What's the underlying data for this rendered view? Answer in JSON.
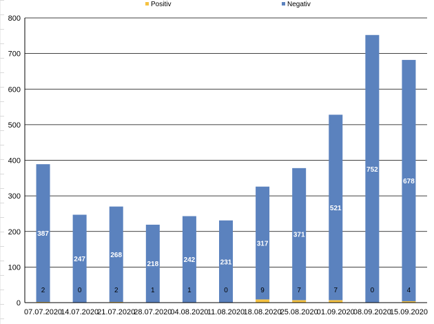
{
  "chart_data": {
    "type": "bar",
    "stacked": true,
    "categories": [
      "07.07.2020",
      "14.07.2020",
      "21.07.2020",
      "28.07.2020",
      "04.08.2020",
      "11.08.2020",
      "18.08.2020",
      "25.08.2020",
      "01.09.2020",
      "08.09.2020",
      "15.09.2020"
    ],
    "series": [
      {
        "name": "Positiv",
        "color": "#f5c242",
        "values": [
          2,
          0,
          2,
          1,
          1,
          0,
          9,
          7,
          7,
          0,
          4
        ]
      },
      {
        "name": "Negativ",
        "color": "#5b82be",
        "values": [
          387,
          247,
          268,
          218,
          242,
          231,
          317,
          371,
          521,
          752,
          678
        ]
      }
    ],
    "title": "",
    "xlabel": "",
    "ylabel": "",
    "ylim": [
      0,
      800
    ],
    "yticks": [
      0,
      100,
      200,
      300,
      400,
      500,
      600,
      700,
      800
    ],
    "grid": true,
    "legend": "top"
  }
}
